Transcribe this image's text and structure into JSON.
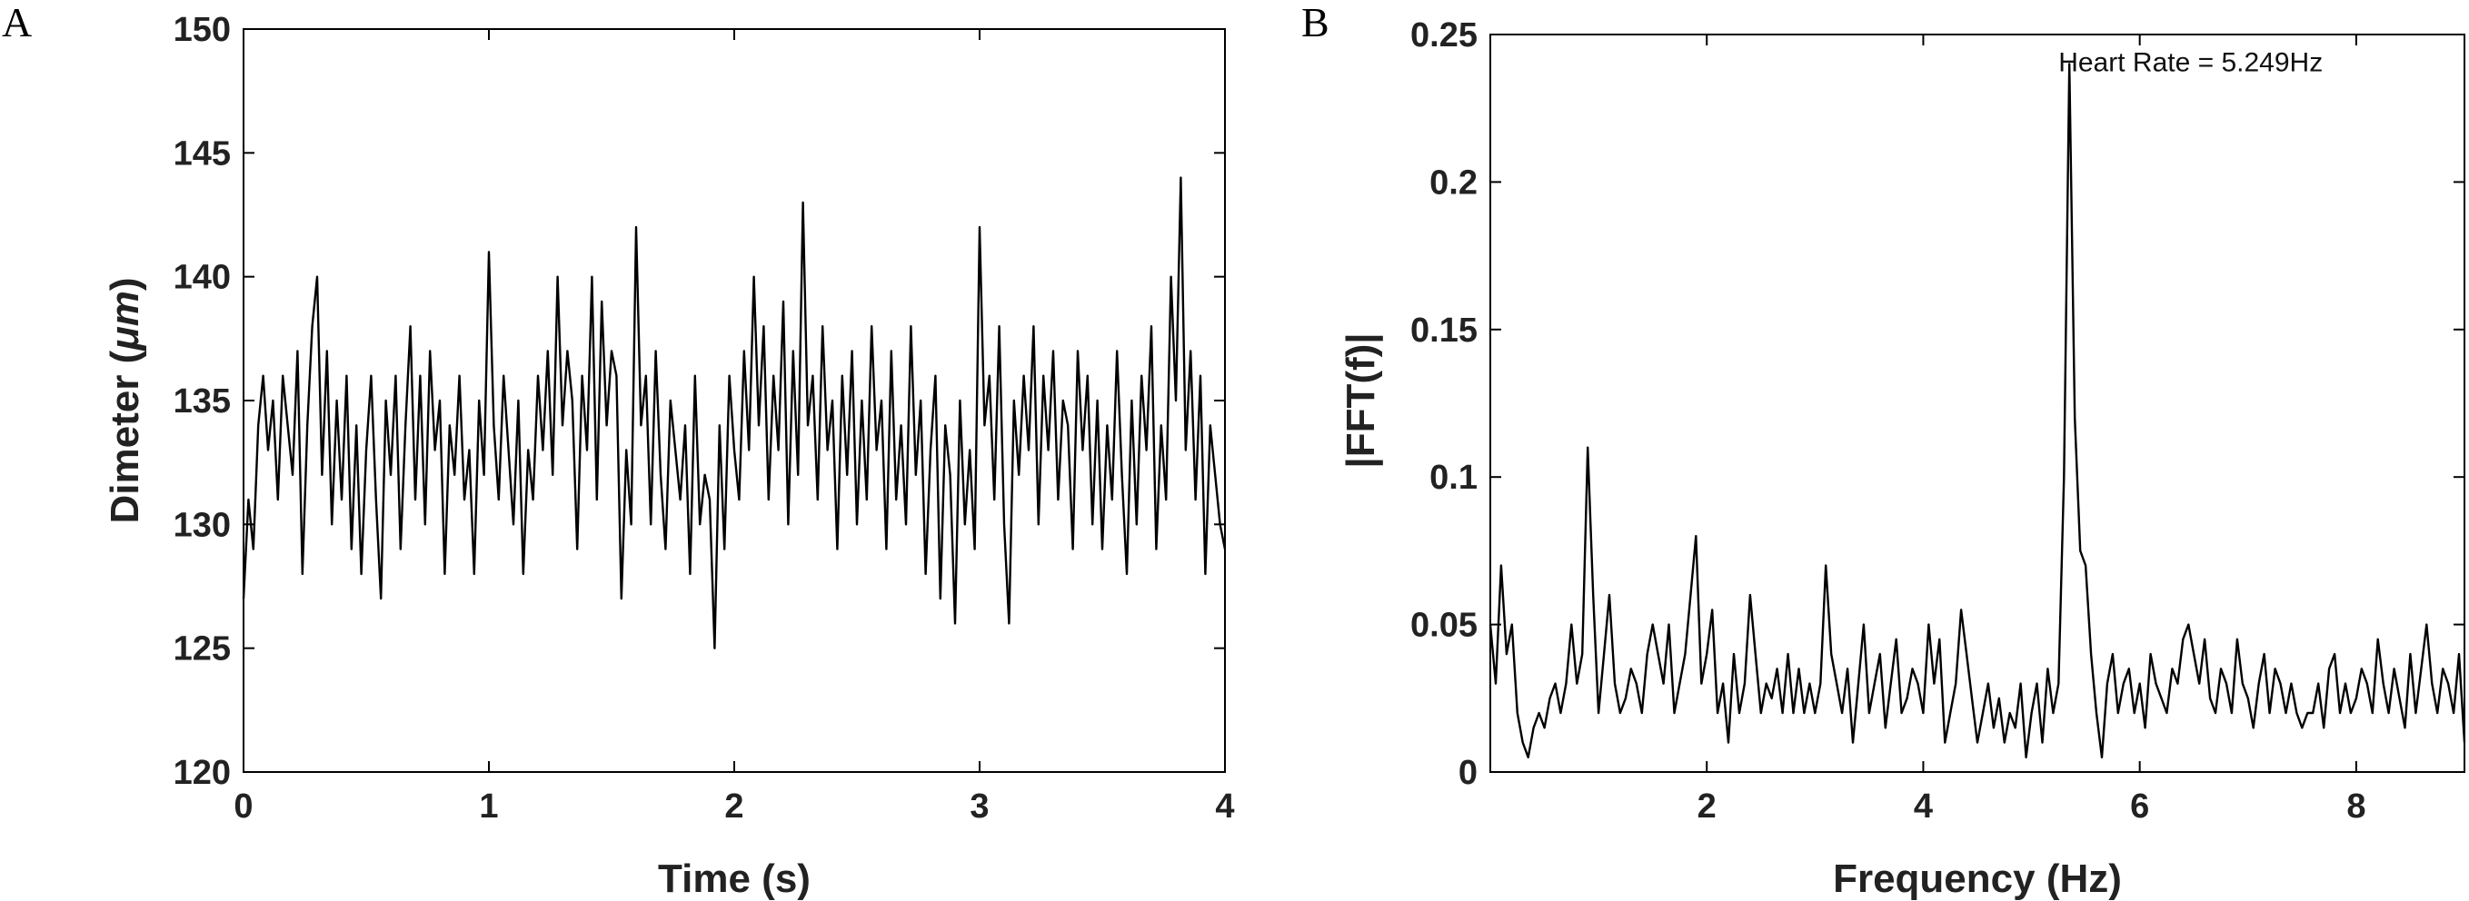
{
  "panels": [
    "A",
    "B"
  ],
  "chart_data": [
    {
      "type": "line",
      "panel": "A",
      "xlabel": "Time (s)",
      "ylabel_prefix": "Dimeter (",
      "ylabel_unit": "μm",
      "ylabel_suffix": ")",
      "xlim": [
        0,
        4
      ],
      "ylim": [
        120,
        150
      ],
      "xticks": [
        0,
        1,
        2,
        3,
        4
      ],
      "yticks": [
        120,
        125,
        130,
        135,
        140,
        145,
        150
      ],
      "grid": false,
      "line_color": "#000000",
      "series": [
        {
          "x": [
            0.0,
            0.02,
            0.04,
            0.06,
            0.08,
            0.1,
            0.12,
            0.14,
            0.16,
            0.18,
            0.2,
            0.22,
            0.24,
            0.26,
            0.28,
            0.3,
            0.32,
            0.34,
            0.36,
            0.38,
            0.4,
            0.42,
            0.44,
            0.46,
            0.48,
            0.5,
            0.52,
            0.54,
            0.56,
            0.58,
            0.6,
            0.62,
            0.64,
            0.66,
            0.68,
            0.7,
            0.72,
            0.74,
            0.76,
            0.78,
            0.8,
            0.82,
            0.84,
            0.86,
            0.88,
            0.9,
            0.92,
            0.94,
            0.96,
            0.98,
            1.0,
            1.02,
            1.04,
            1.06,
            1.08,
            1.1,
            1.12,
            1.14,
            1.16,
            1.18,
            1.2,
            1.22,
            1.24,
            1.26,
            1.28,
            1.3,
            1.32,
            1.34,
            1.36,
            1.38,
            1.4,
            1.42,
            1.44,
            1.46,
            1.48,
            1.5,
            1.52,
            1.54,
            1.56,
            1.58,
            1.6,
            1.62,
            1.64,
            1.66,
            1.68,
            1.7,
            1.72,
            1.74,
            1.76,
            1.78,
            1.8,
            1.82,
            1.84,
            1.86,
            1.88,
            1.9,
            1.92,
            1.94,
            1.96,
            1.98,
            2.0,
            2.02,
            2.04,
            2.06,
            2.08,
            2.1,
            2.12,
            2.14,
            2.16,
            2.18,
            2.2,
            2.22,
            2.24,
            2.26,
            2.28,
            2.3,
            2.32,
            2.34,
            2.36,
            2.38,
            2.4,
            2.42,
            2.44,
            2.46,
            2.48,
            2.5,
            2.52,
            2.54,
            2.56,
            2.58,
            2.6,
            2.62,
            2.64,
            2.66,
            2.68,
            2.7,
            2.72,
            2.74,
            2.76,
            2.78,
            2.8,
            2.82,
            2.84,
            2.86,
            2.88,
            2.9,
            2.92,
            2.94,
            2.96,
            2.98,
            3.0,
            3.02,
            3.04,
            3.06,
            3.08,
            3.1,
            3.12,
            3.14,
            3.16,
            3.18,
            3.2,
            3.22,
            3.24,
            3.26,
            3.28,
            3.3,
            3.32,
            3.34,
            3.36,
            3.38,
            3.4,
            3.42,
            3.44,
            3.46,
            3.48,
            3.5,
            3.52,
            3.54,
            3.56,
            3.58,
            3.6,
            3.62,
            3.64,
            3.66,
            3.68,
            3.7,
            3.72,
            3.74,
            3.76,
            3.78,
            3.8,
            3.82,
            3.84,
            3.86,
            3.88,
            3.9,
            3.92,
            3.94,
            3.96,
            3.98,
            4.0
          ],
          "y": [
            127,
            131,
            129,
            134,
            136,
            133,
            135,
            131,
            136,
            134,
            132,
            137,
            128,
            134,
            138,
            140,
            132,
            137,
            130,
            135,
            131,
            136,
            129,
            134,
            128,
            133,
            136,
            131,
            127,
            135,
            132,
            136,
            129,
            134,
            138,
            131,
            136,
            130,
            137,
            133,
            135,
            128,
            134,
            132,
            136,
            131,
            133,
            128,
            135,
            132,
            141,
            134,
            131,
            136,
            133,
            130,
            135,
            128,
            133,
            131,
            136,
            133,
            137,
            132,
            140,
            134,
            137,
            135,
            129,
            136,
            133,
            140,
            131,
            139,
            134,
            137,
            136,
            127,
            133,
            130,
            142,
            134,
            136,
            130,
            137,
            132,
            129,
            135,
            133,
            131,
            134,
            128,
            136,
            130,
            132,
            131,
            125,
            134,
            129,
            136,
            133,
            131,
            137,
            133,
            140,
            134,
            138,
            131,
            136,
            133,
            139,
            130,
            137,
            132,
            143,
            134,
            136,
            131,
            138,
            133,
            135,
            129,
            136,
            132,
            137,
            130,
            135,
            131,
            138,
            133,
            135,
            129,
            137,
            131,
            134,
            130,
            138,
            132,
            135,
            128,
            133,
            136,
            127,
            134,
            132,
            126,
            135,
            130,
            133,
            129,
            142,
            134,
            136,
            131,
            138,
            130,
            126,
            135,
            132,
            136,
            133,
            138,
            130,
            136,
            133,
            137,
            131,
            135,
            134,
            129,
            137,
            133,
            136,
            130,
            135,
            129,
            134,
            131,
            137,
            132,
            128,
            135,
            130,
            136,
            133,
            138,
            129,
            134,
            131,
            140,
            135,
            144,
            133,
            137,
            131,
            136,
            128,
            134,
            132,
            130,
            129
          ]
        }
      ]
    },
    {
      "type": "line",
      "panel": "B",
      "xlabel": "Frequency (Hz)",
      "ylabel": "|FFT(f)|",
      "xlim": [
        0,
        9
      ],
      "ylim": [
        0,
        0.25
      ],
      "xticks": [
        2,
        4,
        6,
        8
      ],
      "yticks": [
        0,
        0.05,
        0.1,
        0.15,
        0.2,
        0.25
      ],
      "ytick_labels": [
        "0",
        "0.05",
        "0.1",
        "0.15",
        "0.2",
        "0.25"
      ],
      "grid": false,
      "line_color": "#000000",
      "annotation": {
        "text": "Heart Rate =  5.249Hz",
        "x": 5.249,
        "y": 0.24
      },
      "series": [
        {
          "x": [
            0.0,
            0.05,
            0.1,
            0.15,
            0.2,
            0.25,
            0.3,
            0.35,
            0.4,
            0.45,
            0.5,
            0.55,
            0.6,
            0.65,
            0.7,
            0.75,
            0.8,
            0.85,
            0.9,
            0.95,
            1.0,
            1.05,
            1.1,
            1.15,
            1.2,
            1.25,
            1.3,
            1.35,
            1.4,
            1.45,
            1.5,
            1.55,
            1.6,
            1.65,
            1.7,
            1.75,
            1.8,
            1.85,
            1.9,
            1.95,
            2.0,
            2.05,
            2.1,
            2.15,
            2.2,
            2.25,
            2.3,
            2.35,
            2.4,
            2.45,
            2.5,
            2.55,
            2.6,
            2.65,
            2.7,
            2.75,
            2.8,
            2.85,
            2.9,
            2.95,
            3.0,
            3.05,
            3.1,
            3.15,
            3.2,
            3.25,
            3.3,
            3.35,
            3.4,
            3.45,
            3.5,
            3.55,
            3.6,
            3.65,
            3.7,
            3.75,
            3.8,
            3.85,
            3.9,
            3.95,
            4.0,
            4.05,
            4.1,
            4.15,
            4.2,
            4.25,
            4.3,
            4.35,
            4.4,
            4.45,
            4.5,
            4.55,
            4.6,
            4.65,
            4.7,
            4.75,
            4.8,
            4.85,
            4.9,
            4.95,
            5.0,
            5.05,
            5.1,
            5.15,
            5.2,
            5.25,
            5.3,
            5.35,
            5.4,
            5.45,
            5.5,
            5.55,
            5.6,
            5.65,
            5.7,
            5.75,
            5.8,
            5.85,
            5.9,
            5.95,
            6.0,
            6.05,
            6.1,
            6.15,
            6.2,
            6.25,
            6.3,
            6.35,
            6.4,
            6.45,
            6.5,
            6.55,
            6.6,
            6.65,
            6.7,
            6.75,
            6.8,
            6.85,
            6.9,
            6.95,
            7.0,
            7.05,
            7.1,
            7.15,
            7.2,
            7.25,
            7.3,
            7.35,
            7.4,
            7.45,
            7.5,
            7.55,
            7.6,
            7.65,
            7.7,
            7.75,
            7.8,
            7.85,
            7.9,
            7.95,
            8.0,
            8.05,
            8.1,
            8.15,
            8.2,
            8.25,
            8.3,
            8.35,
            8.4,
            8.45,
            8.5,
            8.55,
            8.6,
            8.65,
            8.7,
            8.75,
            8.8,
            8.85,
            8.9,
            8.95,
            9.0
          ],
          "y": [
            0.05,
            0.03,
            0.07,
            0.04,
            0.05,
            0.02,
            0.01,
            0.005,
            0.015,
            0.02,
            0.015,
            0.025,
            0.03,
            0.02,
            0.03,
            0.05,
            0.03,
            0.04,
            0.11,
            0.06,
            0.02,
            0.04,
            0.06,
            0.03,
            0.02,
            0.025,
            0.035,
            0.03,
            0.02,
            0.04,
            0.05,
            0.04,
            0.03,
            0.05,
            0.02,
            0.03,
            0.04,
            0.06,
            0.08,
            0.03,
            0.04,
            0.055,
            0.02,
            0.03,
            0.01,
            0.04,
            0.02,
            0.03,
            0.06,
            0.04,
            0.02,
            0.03,
            0.025,
            0.035,
            0.02,
            0.04,
            0.02,
            0.035,
            0.02,
            0.03,
            0.02,
            0.03,
            0.07,
            0.04,
            0.03,
            0.02,
            0.035,
            0.01,
            0.03,
            0.05,
            0.02,
            0.03,
            0.04,
            0.015,
            0.03,
            0.045,
            0.02,
            0.025,
            0.035,
            0.03,
            0.02,
            0.05,
            0.03,
            0.045,
            0.01,
            0.02,
            0.03,
            0.055,
            0.04,
            0.025,
            0.01,
            0.02,
            0.03,
            0.015,
            0.025,
            0.01,
            0.02,
            0.015,
            0.03,
            0.005,
            0.02,
            0.03,
            0.01,
            0.035,
            0.02,
            0.03,
            0.1,
            0.24,
            0.12,
            0.075,
            0.07,
            0.04,
            0.02,
            0.005,
            0.03,
            0.04,
            0.02,
            0.03,
            0.035,
            0.02,
            0.03,
            0.015,
            0.04,
            0.03,
            0.025,
            0.02,
            0.035,
            0.03,
            0.045,
            0.05,
            0.04,
            0.03,
            0.045,
            0.025,
            0.02,
            0.035,
            0.03,
            0.02,
            0.045,
            0.03,
            0.025,
            0.015,
            0.03,
            0.04,
            0.02,
            0.035,
            0.03,
            0.02,
            0.03,
            0.02,
            0.015,
            0.02,
            0.02,
            0.03,
            0.015,
            0.035,
            0.04,
            0.02,
            0.03,
            0.02,
            0.025,
            0.035,
            0.03,
            0.02,
            0.045,
            0.03,
            0.02,
            0.035,
            0.025,
            0.015,
            0.04,
            0.02,
            0.035,
            0.05,
            0.03,
            0.02,
            0.035,
            0.03,
            0.02,
            0.04,
            0.01
          ]
        }
      ]
    }
  ]
}
